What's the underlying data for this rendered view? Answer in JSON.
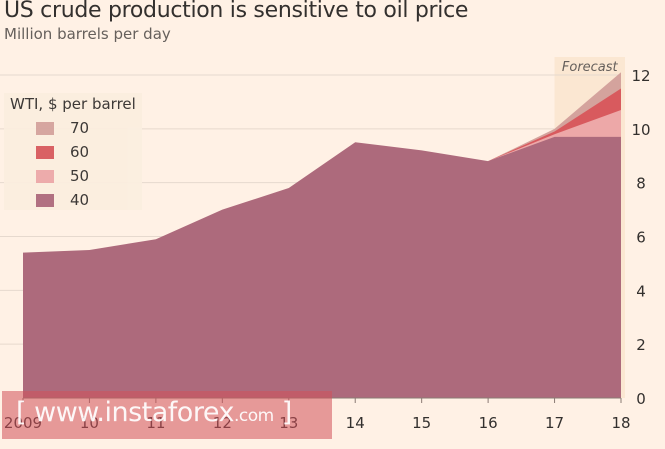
{
  "title": "US crude production is sensitive to oil price",
  "subtitle": "Million barrels per day",
  "watermark": {
    "open": "[",
    "site": " www.instaforex",
    "tld": ".com",
    "close": " ]"
  },
  "chart_data": {
    "type": "area",
    "title": "US crude production is sensitive to oil price",
    "subtitle": "Million barrels per day",
    "x": [
      "2009",
      "10",
      "11",
      "12",
      "13",
      "14",
      "15",
      "16",
      "17",
      "18"
    ],
    "ylim": [
      0,
      12
    ],
    "yticks": [
      0,
      2,
      4,
      6,
      8,
      10,
      12
    ],
    "grid": true,
    "forecast_label": "Forecast",
    "forecast_from": "17",
    "legend": {
      "title": "WTI, $ per barrel",
      "placement": "top-left"
    },
    "series": [
      {
        "name": "40",
        "color": "#ad6a7c",
        "values": [
          5.4,
          5.5,
          5.9,
          7.0,
          7.8,
          9.5,
          9.2,
          8.8,
          9.7,
          9.7
        ]
      },
      {
        "name": "50",
        "color": "#eda8a8",
        "values": [
          null,
          null,
          null,
          null,
          null,
          null,
          null,
          8.8,
          9.8,
          10.7
        ]
      },
      {
        "name": "60",
        "color": "#d85a5e",
        "values": [
          null,
          null,
          null,
          null,
          null,
          null,
          null,
          8.8,
          9.9,
          11.5
        ]
      },
      {
        "name": "70",
        "color": "#d4a39d",
        "values": [
          null,
          null,
          null,
          null,
          null,
          null,
          null,
          8.8,
          10.0,
          12.1
        ]
      }
    ],
    "legend_order": [
      "70",
      "60",
      "50",
      "40"
    ]
  },
  "style": {
    "background": "#fff1e5",
    "forecast_shade": "#fbe7d2",
    "gridline": "#e6d9ce",
    "tick_text": "#33302e"
  }
}
